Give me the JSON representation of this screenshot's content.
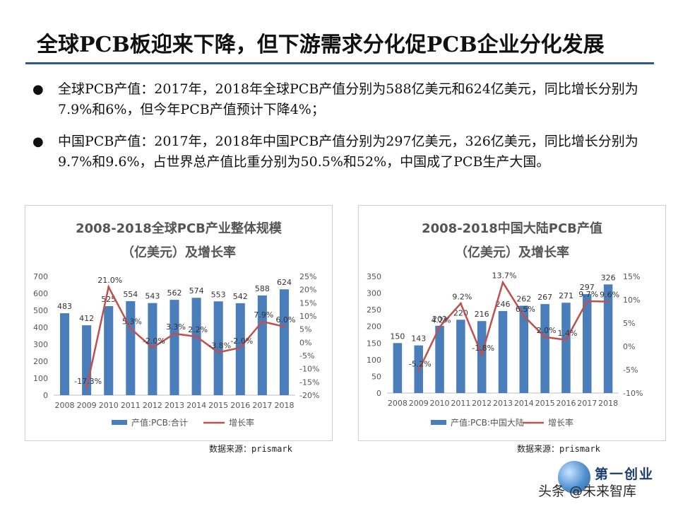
{
  "page": {
    "title": "全球PCB板迎来下降，但下游需求分化促PCB企业分化发展",
    "bullets": [
      "全球PCB产值：2017年，2018年全球PCB产值分别为588亿美元和624亿美元，同比增长分别为7.9%和6%，但今年PCB产值预计下降4%；",
      "中国PCB产值：2017年，2018年中国PCB产值分别为297亿美元，326亿美元，同比增长分别为9.7%和9.6%，占世界总产值比重分别为50.5%和52%，中国成了PCB生产大国。"
    ],
    "bullet_symbol": "●",
    "watermark": "头条 @未来智库",
    "logo_text": "第一创业"
  },
  "colors": {
    "bar": "#4a7ebb",
    "line": "#c0504d",
    "rule": "#2c5a8a"
  },
  "chart_data": [
    {
      "type": "bar",
      "title": "2008-2018全球PCB产业整体规模",
      "subtitle": "（亿美元）及增长率",
      "categories": [
        "2008",
        "2009",
        "2010",
        "2011",
        "2012",
        "2013",
        "2014",
        "2015",
        "2016",
        "2017",
        "2018"
      ],
      "series": [
        {
          "name": "产值:PCB:合计",
          "type": "bar",
          "axis": "left",
          "values": [
            483,
            412,
            525,
            554,
            543,
            562,
            574,
            553,
            542,
            588,
            624
          ],
          "labels": [
            "483",
            "412",
            "525",
            "554",
            "543",
            "562",
            "574",
            "553",
            "542",
            "588",
            "624"
          ]
        },
        {
          "name": "增长率",
          "type": "line",
          "axis": "right",
          "values": [
            null,
            -17.3,
            21.0,
            5.3,
            -2.0,
            3.3,
            2.2,
            -3.8,
            -2.0,
            7.9,
            6.0
          ],
          "labels": [
            "",
            "-17.3%",
            "21.0%",
            "5.3%",
            "-2.0%",
            "3.3%",
            "2.2%",
            "-3.8%",
            "-2.0%",
            "7.9%",
            "6.0%"
          ]
        }
      ],
      "ylim": [
        0,
        700
      ],
      "yticks": [
        "0",
        "100",
        "200",
        "300",
        "400",
        "500",
        "600",
        "700"
      ],
      "y2lim": [
        -20,
        25
      ],
      "y2ticks": [
        "-20%",
        "-15%",
        "-10%",
        "-5%",
        "0%",
        "5%",
        "10%",
        "15%",
        "20%",
        "25%"
      ],
      "source": "数据来源：prismark"
    },
    {
      "type": "bar",
      "title": "2008-2018中国大陆PCB产值",
      "subtitle": "（亿美元）及增长率",
      "categories": [
        "2008",
        "2009",
        "2010",
        "2011",
        "2012",
        "2013",
        "2014",
        "2015",
        "2016",
        "2017",
        "2018"
      ],
      "series": [
        {
          "name": "产值:PCB:中国大陆",
          "type": "bar",
          "axis": "left",
          "values": [
            150,
            143,
            202,
            220,
            216,
            246,
            262,
            267,
            271,
            297,
            326
          ],
          "labels": [
            "150",
            "143",
            "202",
            "220",
            "216",
            "246",
            "262",
            "267",
            "271",
            "297",
            "326"
          ]
        },
        {
          "name": "增长率",
          "type": "line",
          "axis": "right",
          "values": [
            null,
            -5.2,
            4.2,
            9.2,
            -1.8,
            13.7,
            6.5,
            2.0,
            1.4,
            9.7,
            9.6
          ],
          "labels": [
            "",
            "-5.2%",
            "4.2%",
            "9.2%",
            "-1.8%",
            "13.7%",
            "6.5%",
            "2.0%",
            "1.4%",
            "9.7%",
            "9.6%"
          ]
        }
      ],
      "ylim": [
        0,
        350
      ],
      "yticks": [
        "0",
        "50",
        "100",
        "150",
        "200",
        "250",
        "300",
        "350"
      ],
      "y2lim": [
        -10,
        15
      ],
      "y2ticks": [
        "-10%",
        "-5%",
        "0%",
        "5%",
        "10%",
        "15%"
      ],
      "source": "数据来源：prismark"
    }
  ]
}
